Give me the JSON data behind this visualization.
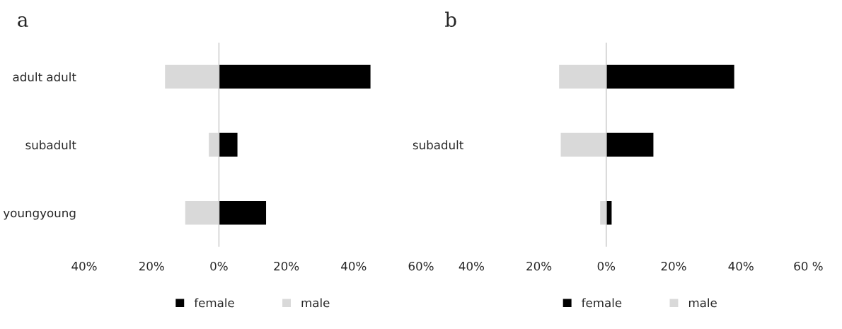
{
  "chart_data": [
    {
      "type": "bar",
      "title": "a",
      "orientation": "horizontal",
      "categories": [
        "adult adult",
        "subadult",
        "youngyoung"
      ],
      "series": [
        {
          "name": "female",
          "color": "#000000",
          "values": [
            45,
            5.5,
            14
          ]
        },
        {
          "name": "male",
          "color": "#d9d9d9",
          "values": [
            -16,
            -3,
            -10
          ]
        }
      ],
      "xlim": [
        -40,
        60
      ],
      "xticks": [
        {
          "value": -40,
          "label": "40%"
        },
        {
          "value": -20,
          "label": "20%"
        },
        {
          "value": 0,
          "label": "0%"
        },
        {
          "value": 20,
          "label": "20%"
        },
        {
          "value": 40,
          "label": "40%"
        },
        {
          "value": 60,
          "label": "60%"
        }
      ],
      "stacked": true,
      "ref_lines": [
        {
          "axis": "x",
          "value": 0,
          "color": "#d0d0d0"
        }
      ],
      "legend": "bottom"
    },
    {
      "type": "bar",
      "title": "b",
      "orientation": "horizontal",
      "categories": [
        null,
        "subadult",
        null
      ],
      "series": [
        {
          "name": "female",
          "color": "#000000",
          "values": [
            38,
            14,
            1.6
          ]
        },
        {
          "name": "male",
          "color": "#d9d9d9",
          "values": [
            -14,
            -13.5,
            -1.8
          ]
        }
      ],
      "xlim": [
        -40,
        60
      ],
      "xticks": [
        {
          "value": -40,
          "label": "40%"
        },
        {
          "value": -20,
          "label": "20%"
        },
        {
          "value": 0,
          "label": "0%"
        },
        {
          "value": 20,
          "label": "20%"
        },
        {
          "value": 40,
          "label": "40%"
        },
        {
          "value": 60,
          "label": "60 %"
        }
      ],
      "stacked": true,
      "ref_lines": [
        {
          "axis": "x",
          "value": 0,
          "color": "#d0d0d0"
        }
      ],
      "legend": "bottom"
    }
  ]
}
